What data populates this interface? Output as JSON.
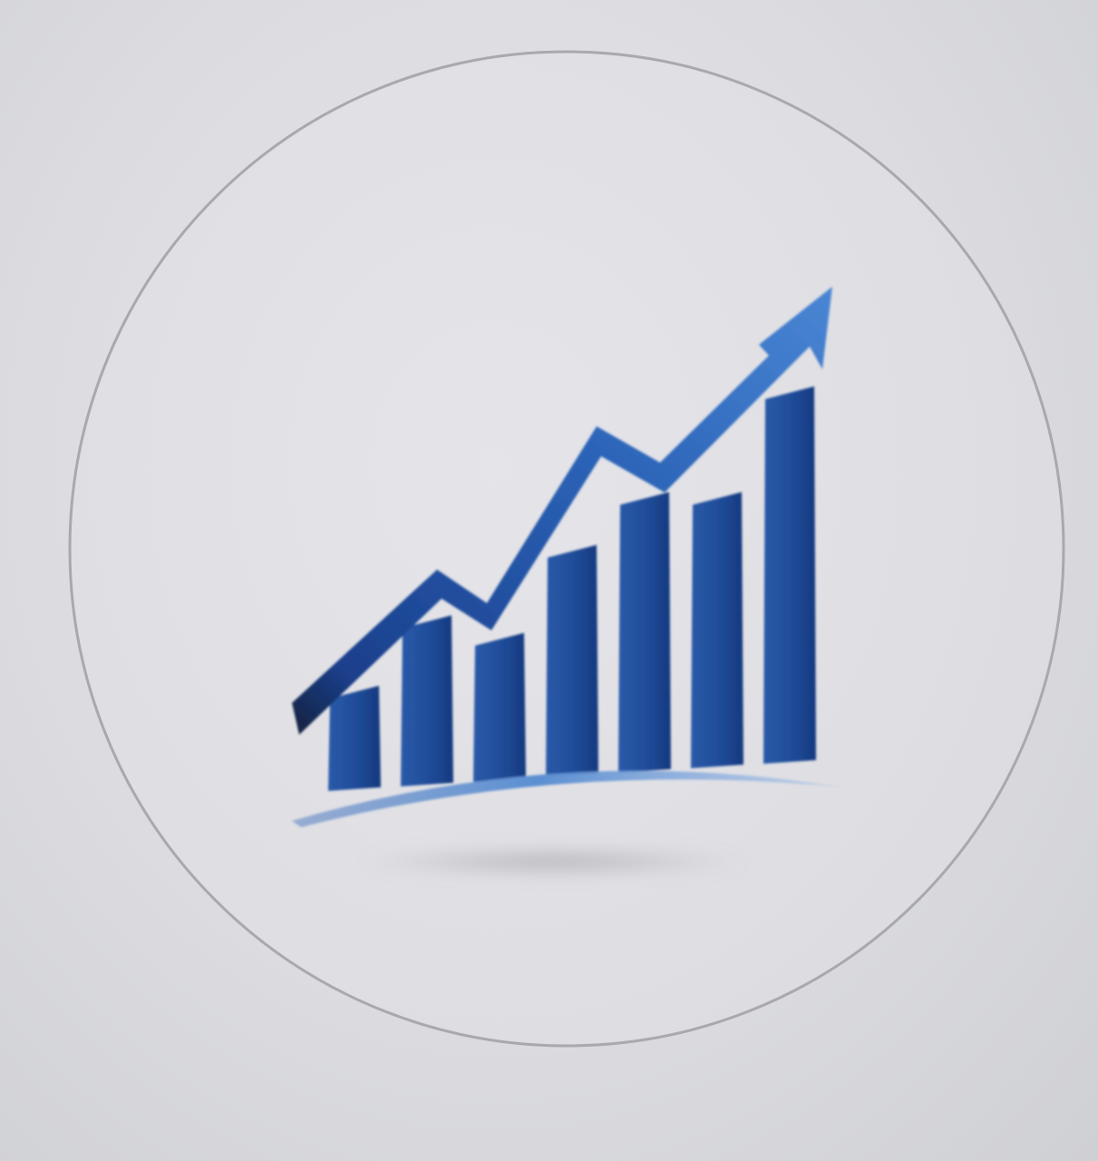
{
  "figure": {
    "kind": "growth-bar-chart-logo",
    "colors": {
      "background": "#dddde1",
      "circle_outline": "#a9a9ad",
      "bar_dark": "#163c86",
      "bar_light": "#3f78c8",
      "arrow_dark": "#1a3f8c",
      "arrow_light": "#4a86d4",
      "arrow_tail_dark": "#17213c",
      "swoosh": "#5b8fd2",
      "shadow": "#9d9da2"
    },
    "icons": [
      "circle-frame",
      "bar-icon",
      "trend-arrow-icon",
      "swoosh-base"
    ],
    "bar_count": 7,
    "bar_levels": [
      0.18,
      0.34,
      0.3,
      0.5,
      0.62,
      0.62,
      0.86
    ]
  }
}
